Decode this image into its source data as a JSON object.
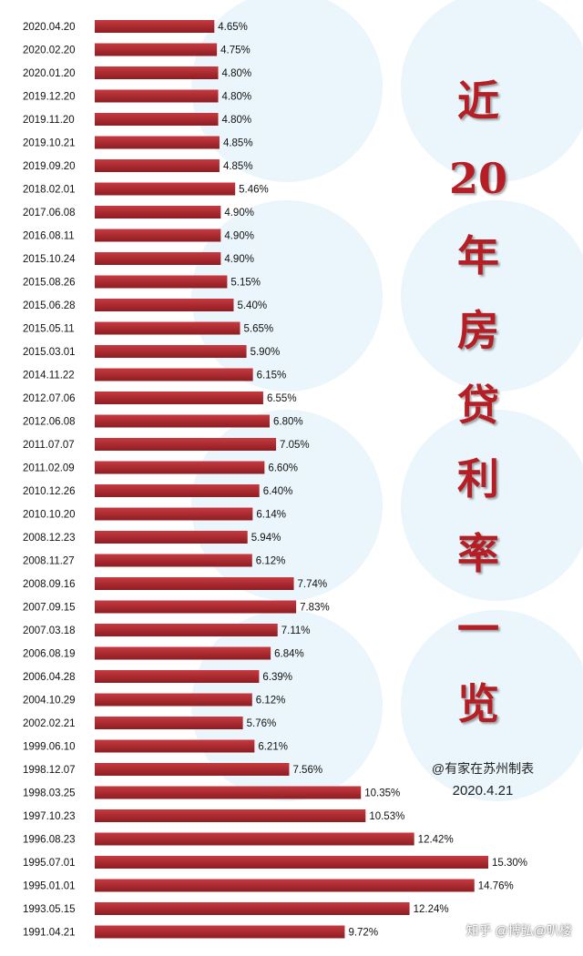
{
  "title_chars": [
    "近",
    "20",
    "年",
    "房",
    "贷",
    "利",
    "率",
    "一",
    "览"
  ],
  "credit": "@有家在苏州制表",
  "date": "2020.4.21",
  "watermark": "知乎 @博弘@叭楼",
  "colors": {
    "bar_top": "#c63a40",
    "bar_bottom": "#8e1d22",
    "title": "#b51e24"
  },
  "chart_data": {
    "type": "bar",
    "orientation": "horizontal",
    "categories": [
      "2020.04.20",
      "2020.02.20",
      "2020.01.20",
      "2019.12.20",
      "2019.11.20",
      "2019.10.21",
      "2019.09.20",
      "2018.02.01",
      "2017.06.08",
      "2016.08.11",
      "2015.10.24",
      "2015.08.26",
      "2015.06.28",
      "2015.05.11",
      "2015.03.01",
      "2014.11.22",
      "2012.07.06",
      "2012.06.08",
      "2011.07.07",
      "2011.02.09",
      "2010.12.26",
      "2010.10.20",
      "2008.12.23",
      "2008.11.27",
      "2008.09.16",
      "2007.09.15",
      "2007.03.18",
      "2006.08.19",
      "2006.04.28",
      "2004.10.29",
      "2002.02.21",
      "1999.06.10",
      "1998.12.07",
      "1998.03.25",
      "1997.10.23",
      "1996.08.23",
      "1995.07.01",
      "1995.01.01",
      "1993.05.15",
      "1991.04.21"
    ],
    "values": [
      4.65,
      4.75,
      4.8,
      4.8,
      4.8,
      4.85,
      4.85,
      5.46,
      4.9,
      4.9,
      4.9,
      5.15,
      5.4,
      5.65,
      5.9,
      6.15,
      6.55,
      6.8,
      7.05,
      6.6,
      6.4,
      6.14,
      5.94,
      6.12,
      7.74,
      7.83,
      7.11,
      6.84,
      6.39,
      6.12,
      5.76,
      6.21,
      7.56,
      10.35,
      10.53,
      12.42,
      15.3,
      14.76,
      12.24,
      9.72
    ],
    "labels": [
      "4.65%",
      "4.75%",
      "4.80%",
      "4.80%",
      "4.80%",
      "4.85%",
      "4.85%",
      "5.46%",
      "4.90%",
      "4.90%",
      "4.90%",
      "5.15%",
      "5.40%",
      "5.65%",
      "5.90%",
      "6.15%",
      "6.55%",
      "6.80%",
      "7.05%",
      "6.60%",
      "6.40%",
      "6.14%",
      "5.94%",
      "6.12%",
      "7.74%",
      "7.83%",
      "7.11%",
      "6.84%",
      "6.39%",
      "6.12%",
      "5.76%",
      "6.21%",
      "7.56%",
      "10.35%",
      "10.53%",
      "12.42%",
      "15.30%",
      "14.76%",
      "12.24%",
      "9.72%"
    ],
    "title": "近20年房贷利率一览",
    "xlim": [
      0,
      15.3
    ],
    "grid": false
  }
}
